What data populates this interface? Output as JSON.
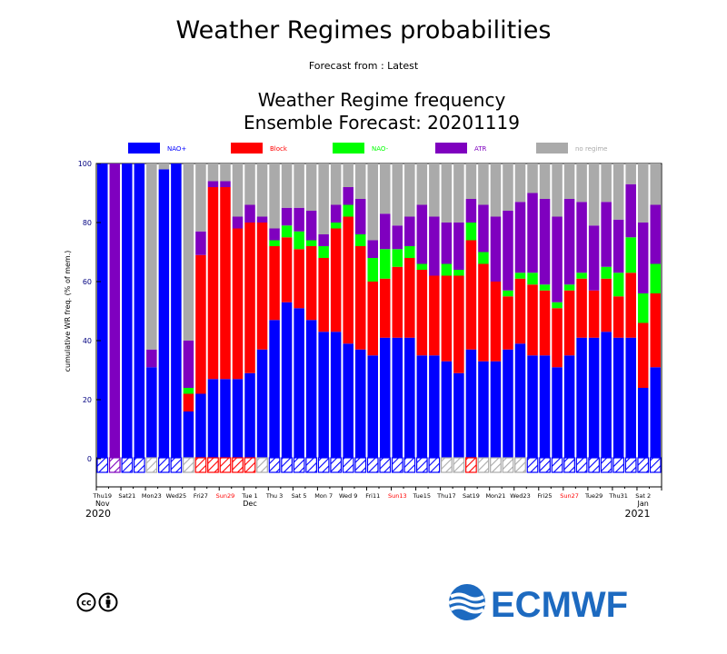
{
  "header": {
    "title": "Weather Regimes probabilities",
    "subtitle": "Forecast from : Latest",
    "chart_title_line1": "Weather Regime frequency",
    "chart_title_line2": "Ensemble Forecast: 20201119"
  },
  "branding": {
    "logo_text": "ECMWF",
    "license": "cc by"
  },
  "colors": {
    "NAO+": "#0000ff",
    "Block": "#ff0000",
    "NAO-": "#00ff00",
    "ATR": "#7f00bf",
    "no regime": "#aaaaaa",
    "weekend_label": "#ff0000",
    "axis": "#000080"
  },
  "chart_data": {
    "type": "bar",
    "stacked": true,
    "ylabel": "cumulative WR freq. (% of mem.)",
    "ylim": [
      0,
      100
    ],
    "yticks": [
      0,
      20,
      40,
      60,
      80,
      100
    ],
    "legend": [
      {
        "name": "NAO+",
        "color": "#0000ff"
      },
      {
        "name": "Block",
        "color": "#ff0000"
      },
      {
        "name": "NAO-",
        "color": "#00ff00"
      },
      {
        "name": "ATR",
        "color": "#7f00bf"
      },
      {
        "name": "no regime",
        "color": "#aaaaaa"
      }
    ],
    "legend_position": "top",
    "x_tick_labels": [
      {
        "day": 0,
        "label": "Thu19",
        "red": false
      },
      {
        "day": 2,
        "label": "Sat21",
        "red": false
      },
      {
        "day": 4,
        "label": "Mon23",
        "red": false
      },
      {
        "day": 6,
        "label": "Wed25",
        "red": false
      },
      {
        "day": 8,
        "label": "Fri27",
        "red": false
      },
      {
        "day": 10,
        "label": "Sun29",
        "red": true
      },
      {
        "day": 12,
        "label": "Tue 1",
        "red": false
      },
      {
        "day": 14,
        "label": "Thu 3",
        "red": false
      },
      {
        "day": 16,
        "label": "Sat 5",
        "red": false
      },
      {
        "day": 18,
        "label": "Mon 7",
        "red": false
      },
      {
        "day": 20,
        "label": "Wed 9",
        "red": false
      },
      {
        "day": 22,
        "label": "Fri11",
        "red": false
      },
      {
        "day": 24,
        "label": "Sun13",
        "red": true
      },
      {
        "day": 26,
        "label": "Tue15",
        "red": false
      },
      {
        "day": 28,
        "label": "Thu17",
        "red": false
      },
      {
        "day": 30,
        "label": "Sat19",
        "red": false
      },
      {
        "day": 32,
        "label": "Mon21",
        "red": false
      },
      {
        "day": 34,
        "label": "Wed23",
        "red": false
      },
      {
        "day": 36,
        "label": "Fri25",
        "red": false
      },
      {
        "day": 38,
        "label": "Sun27",
        "red": true
      },
      {
        "day": 40,
        "label": "Tue29",
        "red": false
      },
      {
        "day": 42,
        "label": "Thu31",
        "red": false
      },
      {
        "day": 44,
        "label": "Sat 2",
        "red": false
      }
    ],
    "month_labels": [
      {
        "day": 0,
        "label": "Nov"
      },
      {
        "day": 12,
        "label": "Dec"
      },
      {
        "day": 44,
        "label": "Jan"
      }
    ],
    "year_labels": [
      {
        "day": 0,
        "label": "2020",
        "align": "start"
      },
      {
        "day": 44,
        "label": "2021",
        "align": "end"
      }
    ],
    "days": [
      {
        "values": [
          100,
          0,
          0,
          0,
          0
        ],
        "dominant": "NAO+"
      },
      {
        "values": [
          0,
          0,
          0,
          100,
          0
        ],
        "dominant": "ATR"
      },
      {
        "values": [
          100,
          0,
          0,
          0,
          0
        ],
        "dominant": "NAO+"
      },
      {
        "values": [
          100,
          0,
          0,
          0,
          0
        ],
        "dominant": "NAO+"
      },
      {
        "values": [
          31,
          0,
          0,
          6,
          63
        ],
        "dominant": "no regime"
      },
      {
        "values": [
          98,
          0,
          0,
          0,
          2
        ],
        "dominant": "NAO+"
      },
      {
        "values": [
          100,
          0,
          0,
          0,
          0
        ],
        "dominant": "NAO+"
      },
      {
        "values": [
          16,
          6,
          2,
          16,
          60
        ],
        "dominant": "no regime"
      },
      {
        "values": [
          22,
          47,
          0,
          8,
          23
        ],
        "dominant": "Block"
      },
      {
        "values": [
          27,
          65,
          0,
          2,
          6
        ],
        "dominant": "Block"
      },
      {
        "values": [
          27,
          65,
          0,
          2,
          6
        ],
        "dominant": "Block"
      },
      {
        "values": [
          27,
          51,
          0,
          4,
          18
        ],
        "dominant": "Block"
      },
      {
        "values": [
          29,
          51,
          0,
          6,
          14
        ],
        "dominant": "Block"
      },
      {
        "values": [
          37,
          43,
          0,
          2,
          18
        ],
        "dominant": "no regime"
      },
      {
        "values": [
          47,
          25,
          2,
          4,
          22
        ],
        "dominant": "NAO+"
      },
      {
        "values": [
          53,
          22,
          4,
          6,
          15
        ],
        "dominant": "NAO+"
      },
      {
        "values": [
          51,
          20,
          6,
          8,
          15
        ],
        "dominant": "NAO+"
      },
      {
        "values": [
          47,
          25,
          2,
          10,
          16
        ],
        "dominant": "NAO+"
      },
      {
        "values": [
          43,
          25,
          4,
          4,
          24
        ],
        "dominant": "NAO+"
      },
      {
        "values": [
          43,
          35,
          2,
          6,
          14
        ],
        "dominant": "NAO+"
      },
      {
        "values": [
          39,
          43,
          4,
          6,
          8
        ],
        "dominant": "NAO+"
      },
      {
        "values": [
          37,
          35,
          4,
          12,
          12
        ],
        "dominant": "NAO+"
      },
      {
        "values": [
          35,
          25,
          8,
          6,
          26
        ],
        "dominant": "NAO+"
      },
      {
        "values": [
          41,
          20,
          10,
          12,
          17
        ],
        "dominant": "NAO+"
      },
      {
        "values": [
          41,
          24,
          6,
          8,
          21
        ],
        "dominant": "NAO+"
      },
      {
        "values": [
          41,
          27,
          4,
          10,
          18
        ],
        "dominant": "NAO+"
      },
      {
        "values": [
          35,
          29,
          2,
          20,
          14
        ],
        "dominant": "NAO+"
      },
      {
        "values": [
          35,
          27,
          0,
          20,
          18
        ],
        "dominant": "NAO+"
      },
      {
        "values": [
          33,
          29,
          4,
          14,
          20
        ],
        "dominant": "no regime"
      },
      {
        "values": [
          29,
          33,
          2,
          16,
          20
        ],
        "dominant": "no regime"
      },
      {
        "values": [
          37,
          37,
          6,
          8,
          12
        ],
        "dominant": "Block"
      },
      {
        "values": [
          33,
          33,
          4,
          16,
          14
        ],
        "dominant": "no regime"
      },
      {
        "values": [
          33,
          27,
          0,
          22,
          18
        ],
        "dominant": "no regime"
      },
      {
        "values": [
          37,
          18,
          2,
          27,
          16
        ],
        "dominant": "no regime"
      },
      {
        "values": [
          39,
          22,
          2,
          24,
          13
        ],
        "dominant": "no regime"
      },
      {
        "values": [
          35,
          24,
          4,
          27,
          10
        ],
        "dominant": "NAO+"
      },
      {
        "values": [
          35,
          22,
          2,
          29,
          12
        ],
        "dominant": "NAO+"
      },
      {
        "values": [
          31,
          20,
          2,
          29,
          18
        ],
        "dominant": "NAO+"
      },
      {
        "values": [
          35,
          22,
          2,
          29,
          12
        ],
        "dominant": "NAO+"
      },
      {
        "values": [
          41,
          20,
          2,
          24,
          13
        ],
        "dominant": "NAO+"
      },
      {
        "values": [
          41,
          16,
          0,
          22,
          21
        ],
        "dominant": "NAO+"
      },
      {
        "values": [
          43,
          18,
          4,
          22,
          13
        ],
        "dominant": "NAO+"
      },
      {
        "values": [
          41,
          14,
          8,
          18,
          19
        ],
        "dominant": "NAO+"
      },
      {
        "values": [
          41,
          22,
          12,
          18,
          7
        ],
        "dominant": "NAO+"
      },
      {
        "values": [
          24,
          22,
          10,
          24,
          20
        ],
        "dominant": "NAO+"
      },
      {
        "values": [
          31,
          25,
          10,
          20,
          14
        ],
        "dominant": "NAO+"
      }
    ]
  }
}
